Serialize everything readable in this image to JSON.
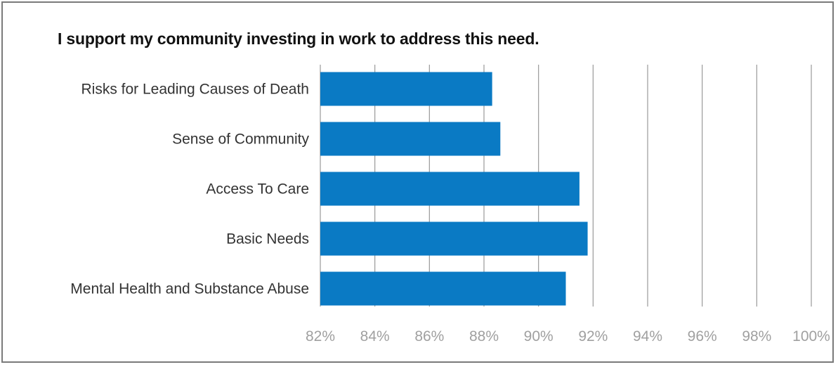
{
  "chart_data": {
    "type": "bar",
    "orientation": "horizontal",
    "title": "I support my community investing in work to address this need.",
    "xlabel": "",
    "ylabel": "",
    "categories": [
      "Risks for Leading Causes of Death",
      "Sense of Community",
      "Access To Care",
      "Basic Needs",
      "Mental Health and Substance Abuse"
    ],
    "values": [
      88.3,
      88.6,
      91.5,
      91.8,
      91.0
    ],
    "xlim": [
      82,
      100
    ],
    "x_ticks": [
      "82%",
      "84%",
      "86%",
      "88%",
      "90%",
      "92%",
      "94%",
      "96%",
      "98%",
      "100%"
    ],
    "grid": "vertical",
    "legend": "none",
    "colors": {
      "bar": "#0a7ac4",
      "grid": "#9a9a9a",
      "separator": "#4a9fd6",
      "frame": "#7a7a7a"
    }
  }
}
